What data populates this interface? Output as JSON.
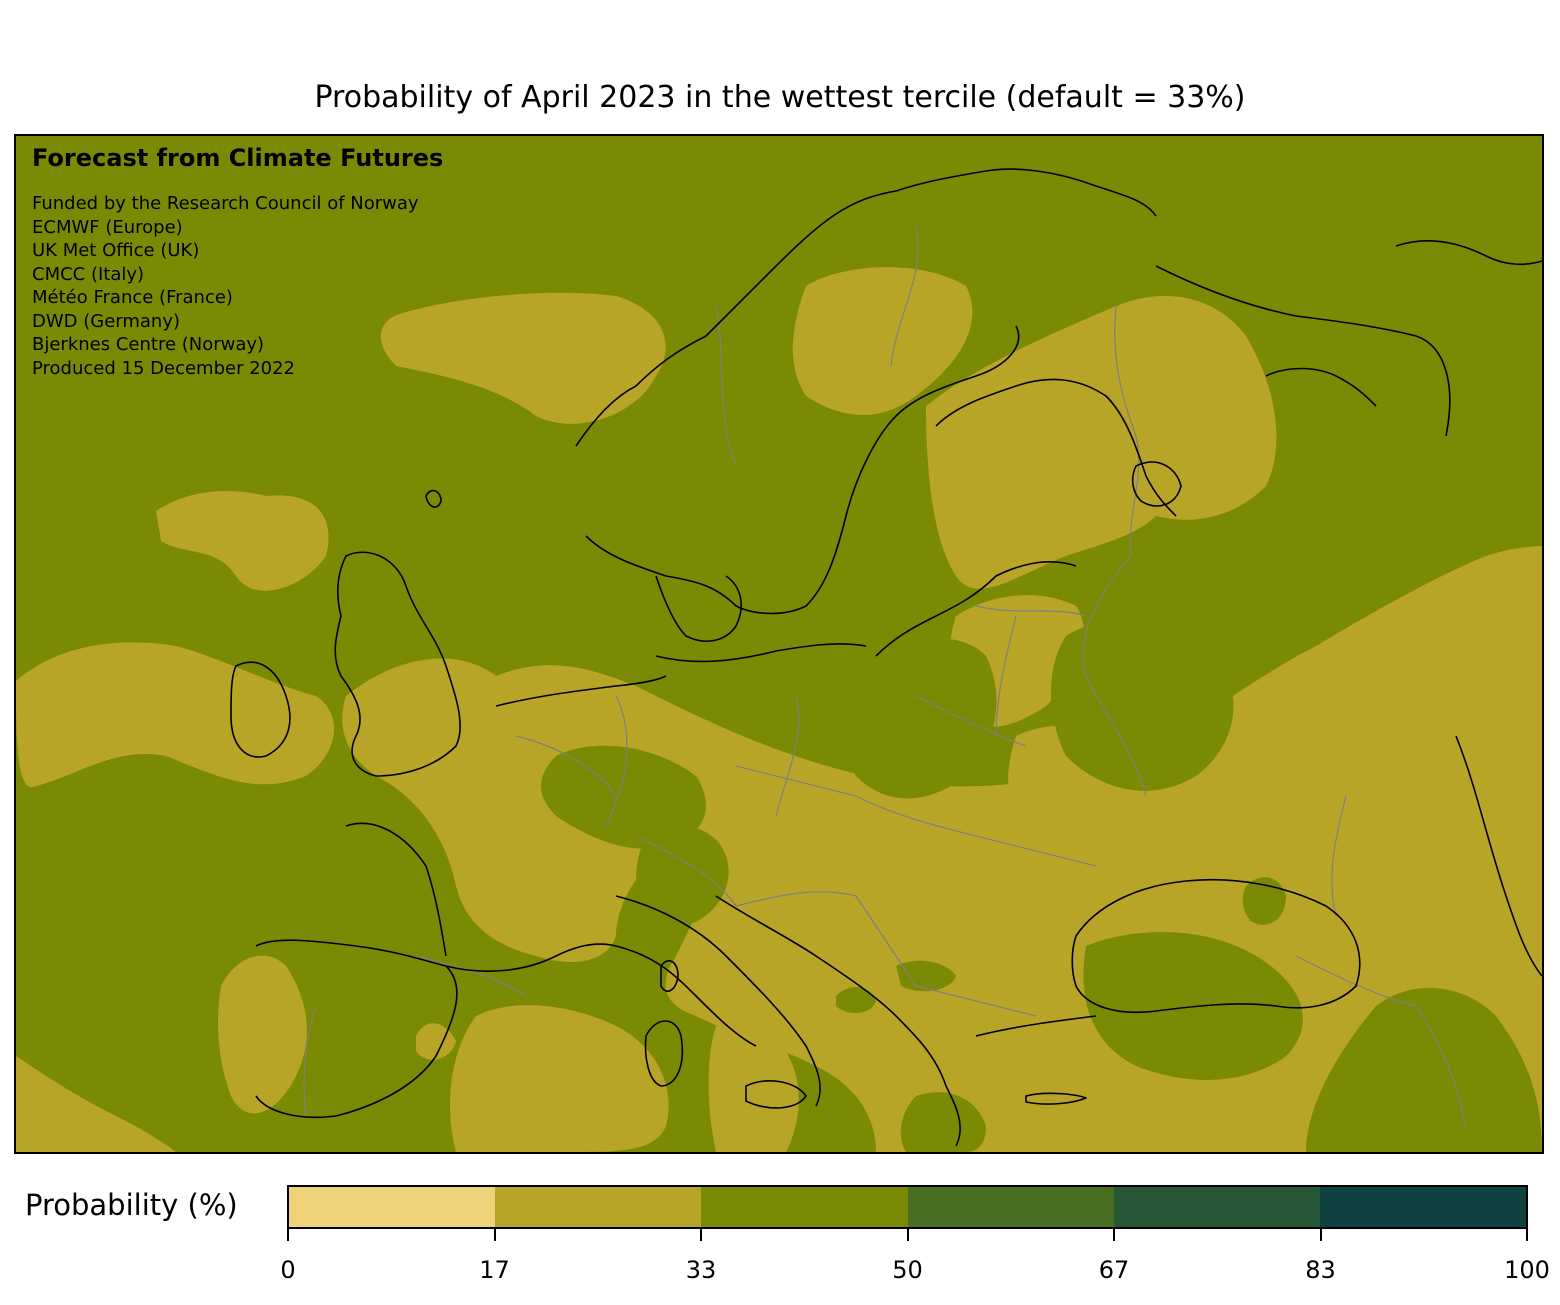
{
  "title": "Probability of April 2023 in the wettest tercile (default = 33%)",
  "info": {
    "heading": "Forecast from Climate Futures",
    "lines": [
      "Funded by the Research Council of Norway",
      "ECMWF (Europe)",
      "UK Met Office (UK)",
      "CMCC (Italy)",
      "Météo France (France)",
      "DWD (Germany)",
      "Bjerknes Centre (Norway)",
      "Produced 15 December 2022"
    ]
  },
  "legend": {
    "label": "Probability (%)",
    "ticks": [
      "0",
      "17",
      "33",
      "50",
      "67",
      "83",
      "100"
    ],
    "bins": [
      {
        "range": [
          0,
          17
        ],
        "color": "#efd27a"
      },
      {
        "range": [
          17,
          33
        ],
        "color": "#b8a427"
      },
      {
        "range": [
          33,
          50
        ],
        "color": "#7a8a05"
      },
      {
        "range": [
          50,
          67
        ],
        "color": "#4a6e22"
      },
      {
        "range": [
          67,
          83
        ],
        "color": "#255636"
      },
      {
        "range": [
          83,
          100
        ],
        "color": "#0f4240"
      }
    ]
  },
  "map": {
    "region": "Europe",
    "background_color": "#7a8a05",
    "coastline_color": "#000000",
    "border_color": "#7f7f7f"
  }
}
